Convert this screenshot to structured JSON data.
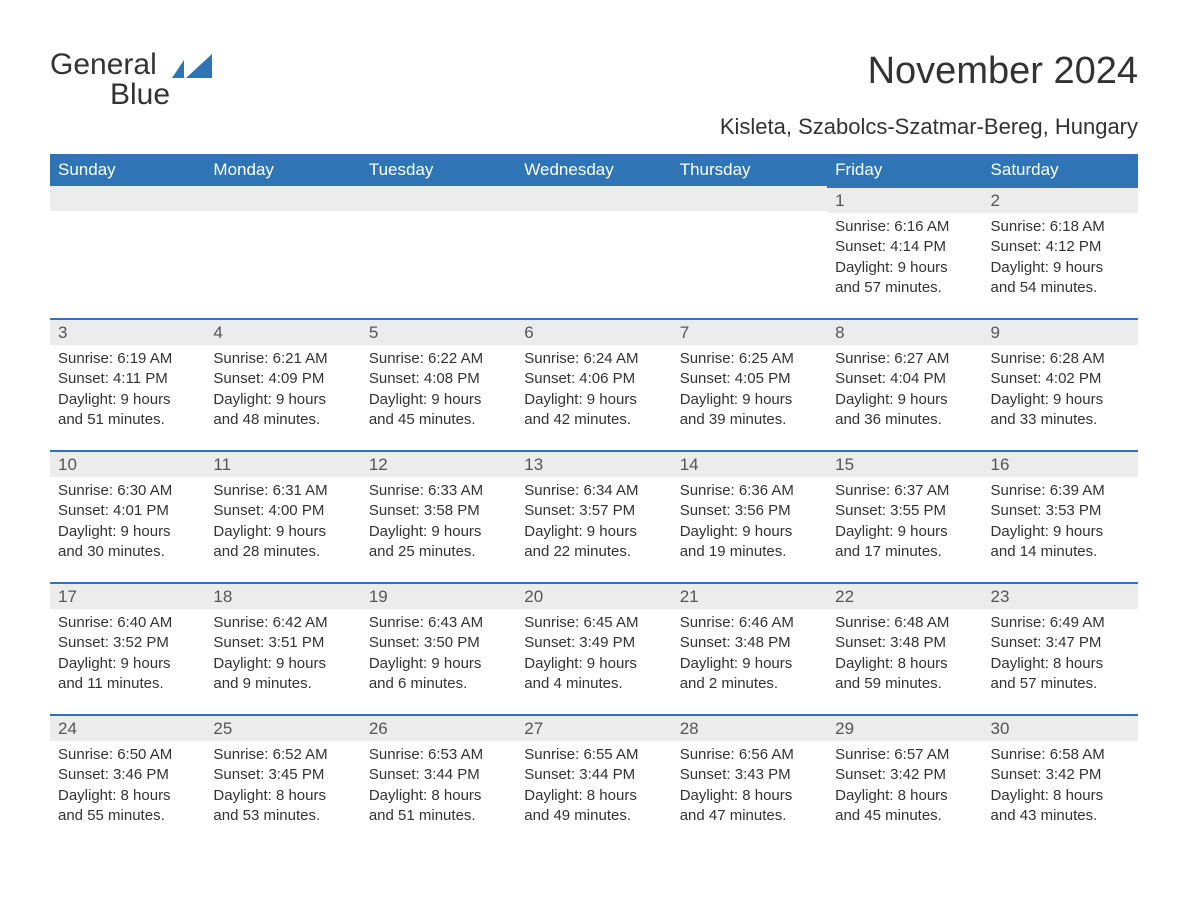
{
  "brand": {
    "name_part1": "General",
    "name_part2": "Blue",
    "text_color": "#333333",
    "accent_color": "#1f6fb2"
  },
  "header": {
    "title": "November 2024",
    "location": "Kisleta, Szabolcs-Szatmar-Bereg, Hungary"
  },
  "calendar": {
    "type": "table",
    "background_color": "#ffffff",
    "header_bg": "#2f75b5",
    "header_text_color": "#ffffff",
    "daynum_bg": "#ececec",
    "daynum_border_color": "#2f75b5",
    "text_color": "#333333",
    "font_family": "Arial",
    "header_fontsize": 17,
    "body_fontsize": 15,
    "columns": [
      "Sunday",
      "Monday",
      "Tuesday",
      "Wednesday",
      "Thursday",
      "Friday",
      "Saturday"
    ],
    "weeks": [
      [
        null,
        null,
        null,
        null,
        null,
        {
          "day": "1",
          "sunrise": "Sunrise: 6:16 AM",
          "sunset": "Sunset: 4:14 PM",
          "daylight1": "Daylight: 9 hours",
          "daylight2": "and 57 minutes."
        },
        {
          "day": "2",
          "sunrise": "Sunrise: 6:18 AM",
          "sunset": "Sunset: 4:12 PM",
          "daylight1": "Daylight: 9 hours",
          "daylight2": "and 54 minutes."
        }
      ],
      [
        {
          "day": "3",
          "sunrise": "Sunrise: 6:19 AM",
          "sunset": "Sunset: 4:11 PM",
          "daylight1": "Daylight: 9 hours",
          "daylight2": "and 51 minutes."
        },
        {
          "day": "4",
          "sunrise": "Sunrise: 6:21 AM",
          "sunset": "Sunset: 4:09 PM",
          "daylight1": "Daylight: 9 hours",
          "daylight2": "and 48 minutes."
        },
        {
          "day": "5",
          "sunrise": "Sunrise: 6:22 AM",
          "sunset": "Sunset: 4:08 PM",
          "daylight1": "Daylight: 9 hours",
          "daylight2": "and 45 minutes."
        },
        {
          "day": "6",
          "sunrise": "Sunrise: 6:24 AM",
          "sunset": "Sunset: 4:06 PM",
          "daylight1": "Daylight: 9 hours",
          "daylight2": "and 42 minutes."
        },
        {
          "day": "7",
          "sunrise": "Sunrise: 6:25 AM",
          "sunset": "Sunset: 4:05 PM",
          "daylight1": "Daylight: 9 hours",
          "daylight2": "and 39 minutes."
        },
        {
          "day": "8",
          "sunrise": "Sunrise: 6:27 AM",
          "sunset": "Sunset: 4:04 PM",
          "daylight1": "Daylight: 9 hours",
          "daylight2": "and 36 minutes."
        },
        {
          "day": "9",
          "sunrise": "Sunrise: 6:28 AM",
          "sunset": "Sunset: 4:02 PM",
          "daylight1": "Daylight: 9 hours",
          "daylight2": "and 33 minutes."
        }
      ],
      [
        {
          "day": "10",
          "sunrise": "Sunrise: 6:30 AM",
          "sunset": "Sunset: 4:01 PM",
          "daylight1": "Daylight: 9 hours",
          "daylight2": "and 30 minutes."
        },
        {
          "day": "11",
          "sunrise": "Sunrise: 6:31 AM",
          "sunset": "Sunset: 4:00 PM",
          "daylight1": "Daylight: 9 hours",
          "daylight2": "and 28 minutes."
        },
        {
          "day": "12",
          "sunrise": "Sunrise: 6:33 AM",
          "sunset": "Sunset: 3:58 PM",
          "daylight1": "Daylight: 9 hours",
          "daylight2": "and 25 minutes."
        },
        {
          "day": "13",
          "sunrise": "Sunrise: 6:34 AM",
          "sunset": "Sunset: 3:57 PM",
          "daylight1": "Daylight: 9 hours",
          "daylight2": "and 22 minutes."
        },
        {
          "day": "14",
          "sunrise": "Sunrise: 6:36 AM",
          "sunset": "Sunset: 3:56 PM",
          "daylight1": "Daylight: 9 hours",
          "daylight2": "and 19 minutes."
        },
        {
          "day": "15",
          "sunrise": "Sunrise: 6:37 AM",
          "sunset": "Sunset: 3:55 PM",
          "daylight1": "Daylight: 9 hours",
          "daylight2": "and 17 minutes."
        },
        {
          "day": "16",
          "sunrise": "Sunrise: 6:39 AM",
          "sunset": "Sunset: 3:53 PM",
          "daylight1": "Daylight: 9 hours",
          "daylight2": "and 14 minutes."
        }
      ],
      [
        {
          "day": "17",
          "sunrise": "Sunrise: 6:40 AM",
          "sunset": "Sunset: 3:52 PM",
          "daylight1": "Daylight: 9 hours",
          "daylight2": "and 11 minutes."
        },
        {
          "day": "18",
          "sunrise": "Sunrise: 6:42 AM",
          "sunset": "Sunset: 3:51 PM",
          "daylight1": "Daylight: 9 hours",
          "daylight2": "and 9 minutes."
        },
        {
          "day": "19",
          "sunrise": "Sunrise: 6:43 AM",
          "sunset": "Sunset: 3:50 PM",
          "daylight1": "Daylight: 9 hours",
          "daylight2": "and 6 minutes."
        },
        {
          "day": "20",
          "sunrise": "Sunrise: 6:45 AM",
          "sunset": "Sunset: 3:49 PM",
          "daylight1": "Daylight: 9 hours",
          "daylight2": "and 4 minutes."
        },
        {
          "day": "21",
          "sunrise": "Sunrise: 6:46 AM",
          "sunset": "Sunset: 3:48 PM",
          "daylight1": "Daylight: 9 hours",
          "daylight2": "and 2 minutes."
        },
        {
          "day": "22",
          "sunrise": "Sunrise: 6:48 AM",
          "sunset": "Sunset: 3:48 PM",
          "daylight1": "Daylight: 8 hours",
          "daylight2": "and 59 minutes."
        },
        {
          "day": "23",
          "sunrise": "Sunrise: 6:49 AM",
          "sunset": "Sunset: 3:47 PM",
          "daylight1": "Daylight: 8 hours",
          "daylight2": "and 57 minutes."
        }
      ],
      [
        {
          "day": "24",
          "sunrise": "Sunrise: 6:50 AM",
          "sunset": "Sunset: 3:46 PM",
          "daylight1": "Daylight: 8 hours",
          "daylight2": "and 55 minutes."
        },
        {
          "day": "25",
          "sunrise": "Sunrise: 6:52 AM",
          "sunset": "Sunset: 3:45 PM",
          "daylight1": "Daylight: 8 hours",
          "daylight2": "and 53 minutes."
        },
        {
          "day": "26",
          "sunrise": "Sunrise: 6:53 AM",
          "sunset": "Sunset: 3:44 PM",
          "daylight1": "Daylight: 8 hours",
          "daylight2": "and 51 minutes."
        },
        {
          "day": "27",
          "sunrise": "Sunrise: 6:55 AM",
          "sunset": "Sunset: 3:44 PM",
          "daylight1": "Daylight: 8 hours",
          "daylight2": "and 49 minutes."
        },
        {
          "day": "28",
          "sunrise": "Sunrise: 6:56 AM",
          "sunset": "Sunset: 3:43 PM",
          "daylight1": "Daylight: 8 hours",
          "daylight2": "and 47 minutes."
        },
        {
          "day": "29",
          "sunrise": "Sunrise: 6:57 AM",
          "sunset": "Sunset: 3:42 PM",
          "daylight1": "Daylight: 8 hours",
          "daylight2": "and 45 minutes."
        },
        {
          "day": "30",
          "sunrise": "Sunrise: 6:58 AM",
          "sunset": "Sunset: 3:42 PM",
          "daylight1": "Daylight: 8 hours",
          "daylight2": "and 43 minutes."
        }
      ]
    ]
  }
}
